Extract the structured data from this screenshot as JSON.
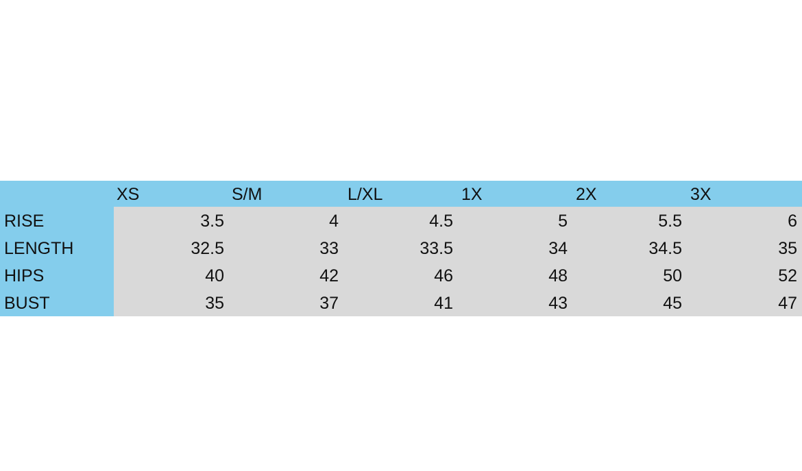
{
  "table": {
    "columns": [
      "XS",
      "S/M",
      "L/XL",
      "1X",
      "2X",
      "3X"
    ],
    "rows": [
      {
        "label": "RISE",
        "values": [
          "3.5",
          "4",
          "4.5",
          "5",
          "5.5",
          "6"
        ]
      },
      {
        "label": "LENGTH",
        "values": [
          "32.5",
          "33",
          "33.5",
          "34",
          "34.5",
          "35"
        ]
      },
      {
        "label": "HIPS",
        "values": [
          "40",
          "42",
          "46",
          "48",
          "50",
          "52"
        ]
      },
      {
        "label": "BUST",
        "values": [
          "35",
          "37",
          "41",
          "43",
          "45",
          "47"
        ]
      }
    ]
  },
  "colors": {
    "header_bg": "#84cdec",
    "cell_bg": "#d9d9d9",
    "text": "#111111"
  }
}
